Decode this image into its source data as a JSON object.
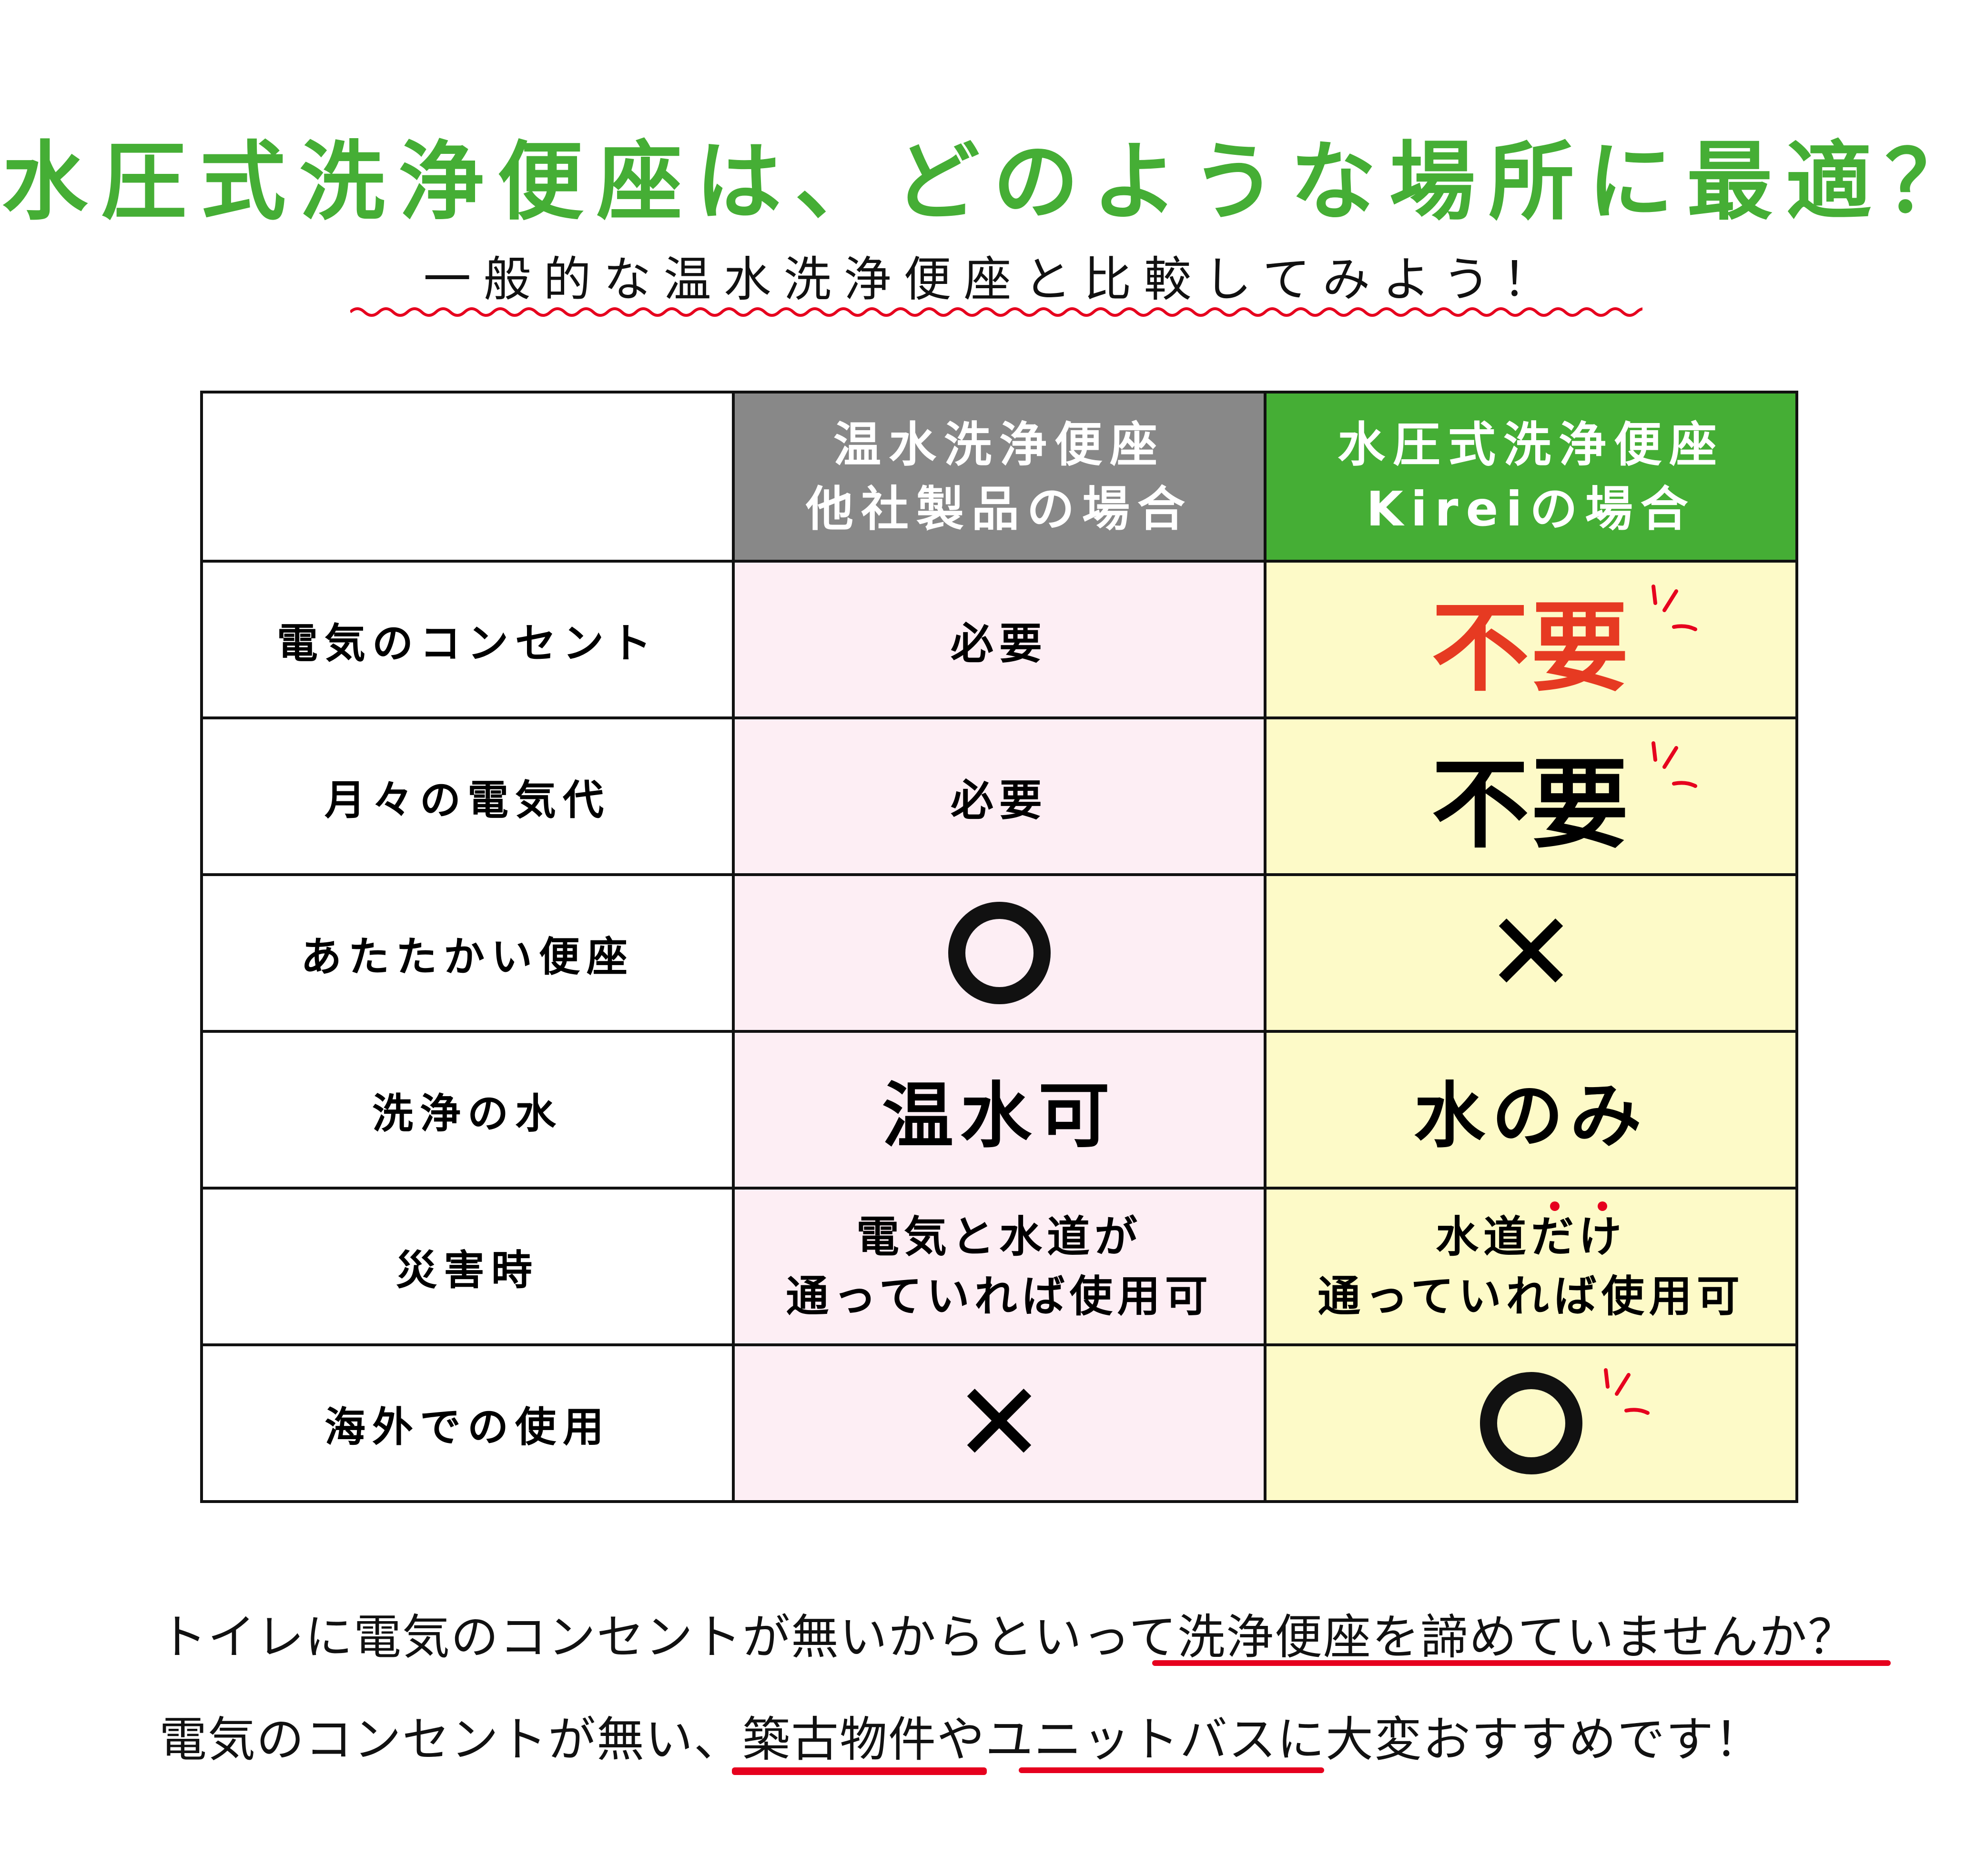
{
  "title": "水圧式洗浄便座は、どのような場所に最適？",
  "subtitle": "一般的な温水洗浄便座と比較してみよう！",
  "colors": {
    "accent_green": "#45ae35",
    "header_gray": "#888888",
    "pink_cell": "#fdeef4",
    "yellow_cell": "#fdfac8",
    "highlight_red": "#e63a22"
  },
  "table": {
    "headers": [
      {
        "line1": "",
        "line2": ""
      },
      {
        "line1": "温水洗浄便座",
        "line2": "他社製品の場合"
      },
      {
        "line1": "水圧式洗浄便座",
        "line2": "Kireiの場合"
      }
    ],
    "rows": [
      {
        "label": "電気のコンセント",
        "other": "必要",
        "kirei": "不要"
      },
      {
        "label": "月々の電気代",
        "other": "必要",
        "kirei": "不要"
      },
      {
        "label": "あたたかい便座",
        "other": "circle-icon",
        "kirei": "cross-icon",
        "other_symbol": "○",
        "kirei_symbol": "✕"
      },
      {
        "label": "洗浄の水",
        "other": "温水可",
        "kirei": "水のみ"
      },
      {
        "label": "災害時",
        "other_line1": "電気と水道が",
        "other_line2": "通っていれば使用可",
        "kirei_line1a": "水道",
        "kirei_line1b": "だけ",
        "kirei_line2": "通っていれば使用可"
      },
      {
        "label": "海外での使用",
        "other": "cross-icon",
        "kirei": "circle-icon"
      }
    ]
  },
  "notes": {
    "line1": "トイレに電気のコンセントが無いからといって洗浄便座を諦めていませんか？",
    "line2": "電気のコンセントが無い、築古物件やユニットバスに大変おすすめです！"
  }
}
